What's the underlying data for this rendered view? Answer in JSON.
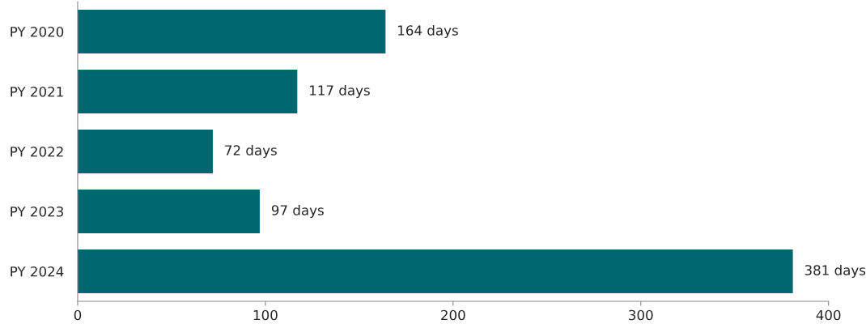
{
  "chart_data": {
    "type": "bar",
    "orientation": "horizontal",
    "categories": [
      "PY 2020",
      "PY 2021",
      "PY 2022",
      "PY 2023",
      "PY 2024"
    ],
    "values": [
      164,
      117,
      72,
      97,
      381
    ],
    "value_labels": [
      "164 days",
      "117 days",
      "72 days",
      "97 days",
      "381 days"
    ],
    "color": "#006670",
    "xlim": [
      0,
      400
    ],
    "xticks": [
      0,
      100,
      200,
      300,
      400
    ],
    "grid": false,
    "legend": false
  }
}
